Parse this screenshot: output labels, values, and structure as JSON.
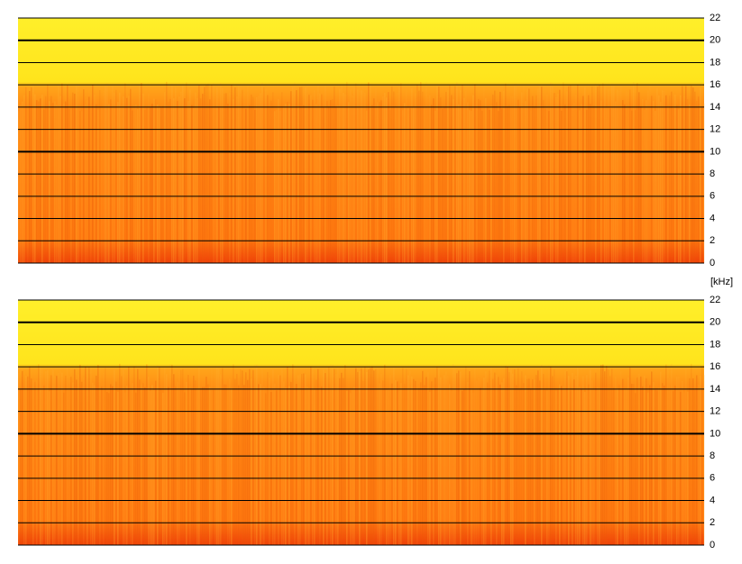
{
  "chart_data": [
    {
      "type": "spectrogram",
      "ylim": [
        0,
        22
      ],
      "yticks": [
        0,
        2,
        4,
        6,
        8,
        10,
        12,
        14,
        16,
        18,
        20,
        22
      ],
      "bold_yticks": [
        10,
        20
      ],
      "grid": true
    },
    {
      "type": "spectrogram",
      "y_label": "[kHz]",
      "ylim": [
        0,
        22
      ],
      "yticks": [
        0,
        2,
        4,
        6,
        8,
        10,
        12,
        14,
        16,
        18,
        20,
        22
      ],
      "bold_yticks": [
        10,
        20
      ],
      "grid": true
    }
  ]
}
